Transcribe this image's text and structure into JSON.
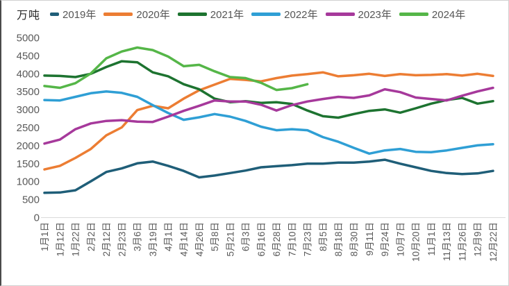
{
  "chart_data": {
    "type": "line",
    "unit_label": "万吨",
    "legend_position": "top",
    "grid": false,
    "y_axis": {
      "min": 0,
      "max": 5000,
      "step": 500,
      "tick_labels": [
        "0",
        "500",
        "1000",
        "1500",
        "2000",
        "2500",
        "3000",
        "3500",
        "4000",
        "4500",
        "5000"
      ]
    },
    "x_labels": [
      "1月1日",
      "1月12日",
      "1月22日",
      "2月2日",
      "2月12日",
      "2月23日",
      "3月6日",
      "3月19日",
      "4月1日",
      "4月14日",
      "4月26日",
      "5月8日",
      "5月21日",
      "6月3日",
      "6月16日",
      "6月28日",
      "7月10日",
      "7月23日",
      "8月5日",
      "8月18日",
      "8月30日",
      "9月11日",
      "9月24日",
      "10月7日",
      "10月20日",
      "11月1日",
      "11月13日",
      "11月26日",
      "12月9日",
      "12月22日"
    ],
    "series": [
      {
        "name": "2019年",
        "color": "#1f5e78",
        "values": [
          680,
          690,
          750,
          1000,
          1260,
          1360,
          1500,
          1550,
          1430,
          1290,
          1110,
          1160,
          1230,
          1300,
          1390,
          1420,
          1450,
          1490,
          1490,
          1520,
          1520,
          1550,
          1600,
          1490,
          1390,
          1290,
          1230,
          1200,
          1220,
          1290
        ]
      },
      {
        "name": "2020年",
        "color": "#ec7d33",
        "values": [
          1330,
          1430,
          1650,
          1900,
          2280,
          2500,
          2980,
          3100,
          3030,
          3300,
          3530,
          3690,
          3850,
          3820,
          3780,
          3870,
          3940,
          3980,
          4030,
          3920,
          3950,
          3990,
          3930,
          3980,
          3950,
          3960,
          3980,
          3940,
          3990,
          3930
        ]
      },
      {
        "name": "2021年",
        "color": "#1d7330",
        "values": [
          3940,
          3930,
          3900,
          3990,
          4180,
          4340,
          4310,
          4030,
          3920,
          3700,
          3560,
          3300,
          3200,
          3230,
          3180,
          3200,
          3150,
          2970,
          2810,
          2770,
          2870,
          2960,
          3000,
          2910,
          3030,
          3160,
          3260,
          3320,
          3160,
          3230
        ]
      },
      {
        "name": "2022年",
        "color": "#2f9fd5",
        "values": [
          3260,
          3250,
          3350,
          3450,
          3500,
          3460,
          3350,
          3120,
          2900,
          2710,
          2780,
          2870,
          2800,
          2680,
          2520,
          2420,
          2450,
          2420,
          2230,
          2100,
          1930,
          1770,
          1860,
          1900,
          1820,
          1810,
          1860,
          1930,
          2000,
          2030
        ]
      },
      {
        "name": "2023年",
        "color": "#a6399b",
        "values": [
          2050,
          2160,
          2450,
          2610,
          2680,
          2700,
          2660,
          2650,
          2800,
          2960,
          3100,
          3250,
          3220,
          3220,
          3130,
          2970,
          3120,
          3220,
          3290,
          3350,
          3320,
          3390,
          3560,
          3480,
          3330,
          3290,
          3250,
          3380,
          3500,
          3600
        ]
      },
      {
        "name": "2024年",
        "color": "#55b648",
        "values": [
          3650,
          3600,
          3730,
          4000,
          4420,
          4610,
          4720,
          4650,
          4470,
          4200,
          4240,
          4060,
          3900,
          3870,
          3740,
          3540,
          3590,
          3700
        ]
      }
    ]
  }
}
